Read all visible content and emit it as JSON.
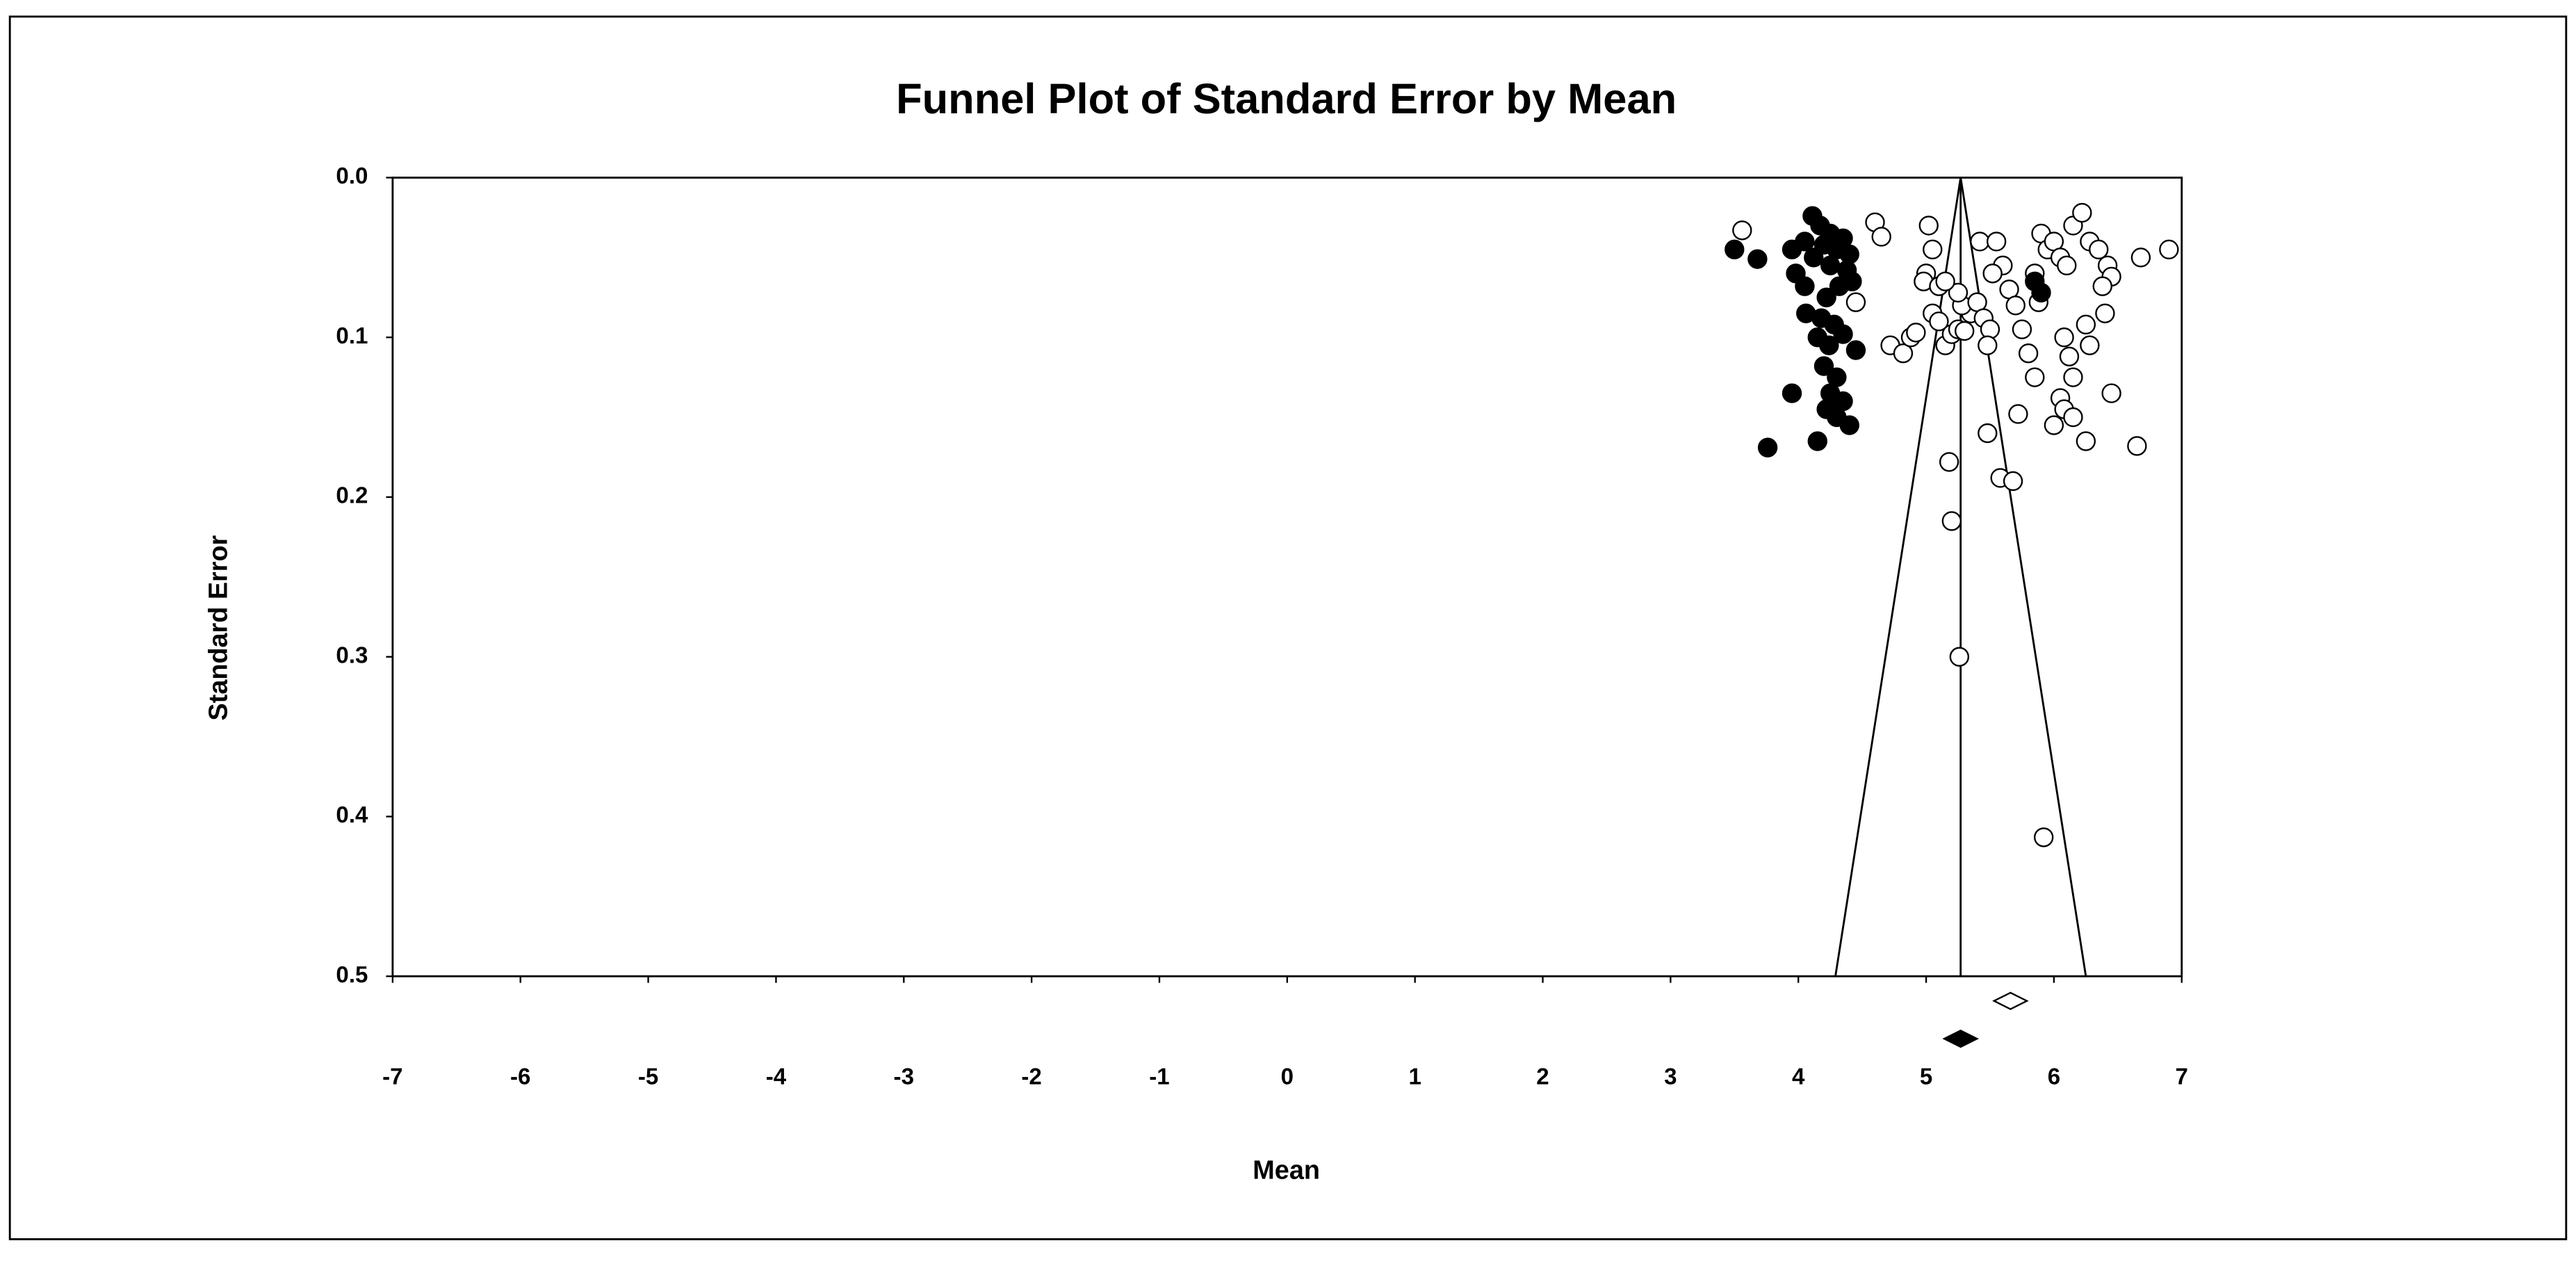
{
  "chart_data": {
    "type": "scatter",
    "title": "Funnel Plot of Standard Error by Mean",
    "x_label": "Mean",
    "y_label": "Standard Error",
    "xlim": [
      -7,
      7
    ],
    "xticks": [
      -7,
      -6,
      -5,
      -4,
      -3,
      -2,
      -1,
      0,
      1,
      2,
      3,
      4,
      5,
      6,
      7
    ],
    "ylim": [
      0,
      0.5
    ],
    "y_inverted": true,
    "yticks": [
      {
        "value": 0,
        "label": "0.0"
      },
      0.1,
      0.2,
      0.3,
      0.4,
      0.5
    ],
    "series": [
      {
        "color": "#000000",
        "filled": false,
        "x": [
          3.56,
          4.6,
          4.65,
          4.45,
          4.72,
          4.82,
          4.88,
          4.92,
          5.02,
          5.05,
          5.0,
          4.98,
          5.1,
          5.05,
          5.1,
          5.15,
          5.2,
          5.25,
          5.3,
          5.35,
          5.28,
          5.4,
          5.45,
          5.5,
          5.48,
          5.42,
          5.55,
          5.6,
          5.52,
          5.65,
          5.7,
          5.75,
          5.8,
          5.85,
          5.9,
          5.95,
          6.0,
          6.05,
          6.1,
          6.15,
          6.22,
          6.28,
          6.35,
          6.42,
          6.45,
          6.38,
          6.4,
          6.25,
          6.28,
          6.08,
          6.12,
          6.15,
          6.05,
          6.08,
          6.15,
          6.0,
          6.25,
          6.45,
          6.68,
          6.9,
          6.65,
          5.18,
          5.2,
          5.26,
          5.48,
          5.58,
          5.68,
          5.92,
          5.72,
          5.85,
          5.88,
          5.25,
          5.15
        ],
        "values": [
          0.033,
          0.028,
          0.037,
          0.078,
          0.105,
          0.11,
          0.1,
          0.097,
          0.03,
          0.045,
          0.06,
          0.065,
          0.068,
          0.085,
          0.09,
          0.105,
          0.098,
          0.095,
          0.096,
          0.085,
          0.08,
          0.078,
          0.088,
          0.095,
          0.105,
          0.04,
          0.04,
          0.055,
          0.06,
          0.07,
          0.08,
          0.095,
          0.11,
          0.125,
          0.035,
          0.045,
          0.04,
          0.05,
          0.055,
          0.03,
          0.022,
          0.04,
          0.045,
          0.055,
          0.062,
          0.068,
          0.085,
          0.092,
          0.105,
          0.1,
          0.112,
          0.125,
          0.138,
          0.145,
          0.15,
          0.155,
          0.165,
          0.135,
          0.05,
          0.045,
          0.168,
          0.178,
          0.215,
          0.3,
          0.16,
          0.188,
          0.19,
          0.413,
          0.148,
          0.06,
          0.078,
          0.072,
          0.065
        ]
      },
      {
        "color": "#000000",
        "filled": true,
        "x": [
          4.11,
          4.17,
          4.25,
          4.35,
          4.05,
          4.2,
          4.3,
          4.4,
          3.95,
          4.12,
          4.25,
          4.38,
          4.42,
          3.98,
          4.05,
          4.32,
          4.22,
          4.06,
          4.18,
          4.28,
          4.15,
          4.35,
          4.24,
          4.45,
          4.2,
          4.3,
          4.25,
          3.95,
          4.35,
          4.22,
          4.3,
          4.4,
          4.15,
          3.76,
          3.5,
          3.68,
          5.85,
          5.9
        ],
        "values": [
          0.024,
          0.03,
          0.035,
          0.038,
          0.04,
          0.042,
          0.045,
          0.048,
          0.045,
          0.05,
          0.055,
          0.058,
          0.065,
          0.06,
          0.068,
          0.068,
          0.075,
          0.085,
          0.088,
          0.092,
          0.1,
          0.098,
          0.105,
          0.108,
          0.118,
          0.125,
          0.135,
          0.135,
          0.14,
          0.145,
          0.15,
          0.155,
          0.165,
          0.169,
          0.045,
          0.051,
          0.065,
          0.072
        ]
      }
    ],
    "funnel": {
      "center": 5.27,
      "lower": 4.29,
      "upper": 6.25
    },
    "summary": [
      {
        "value": 5.66,
        "filled": false
      },
      {
        "value": 5.27,
        "filled": true
      }
    ]
  }
}
